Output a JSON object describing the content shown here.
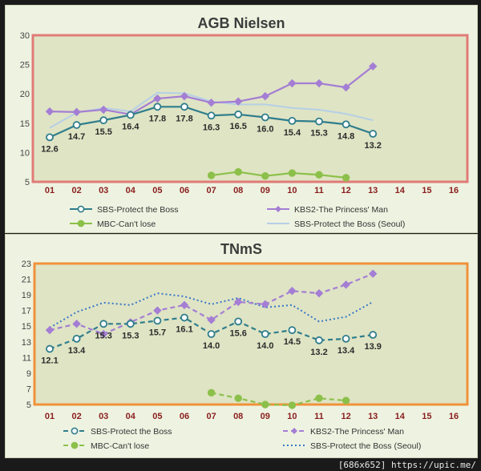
{
  "image_credit": "[686x652] https://upic.me/",
  "chart_data": [
    {
      "type": "line",
      "title": "AGB Nielsen",
      "categories": [
        "01",
        "02",
        "03",
        "04",
        "05",
        "06",
        "07",
        "08",
        "09",
        "10",
        "11",
        "12",
        "13",
        "14",
        "15",
        "16"
      ],
      "ylim": [
        5,
        30
      ],
      "yticks": [
        5,
        10,
        15,
        20,
        25,
        30
      ],
      "frame_color": "#e07b78",
      "series": [
        {
          "name": "SBS-Protect the Boss",
          "color": "#2f7d8c",
          "style": "solid",
          "marker": "circle",
          "labeled": true,
          "values": [
            12.6,
            14.7,
            15.5,
            16.4,
            17.8,
            17.8,
            16.3,
            16.5,
            16.0,
            15.4,
            15.3,
            14.8,
            13.2,
            null,
            null,
            null
          ]
        },
        {
          "name": "KBS2-The Princess' Man",
          "color": "#a47ed4",
          "style": "solid",
          "marker": "diamond",
          "labeled": false,
          "values": [
            17.0,
            16.9,
            17.3,
            16.5,
            19.2,
            19.6,
            18.5,
            18.7,
            19.6,
            21.8,
            21.8,
            21.1,
            24.7,
            null,
            null,
            null
          ]
        },
        {
          "name": "MBC-Can't lose",
          "color": "#8cc04a",
          "style": "solid",
          "marker": "circle",
          "labeled": false,
          "values": [
            null,
            null,
            null,
            null,
            null,
            null,
            6.1,
            6.7,
            6.0,
            6.5,
            6.2,
            5.7,
            null,
            null,
            null,
            null
          ]
        },
        {
          "name": "SBS-Protect the Boss (Seoul)",
          "color": "#b5cfe6",
          "style": "solid",
          "marker": "none",
          "labeled": false,
          "values": [
            14.2,
            16.8,
            17.6,
            17.0,
            20.2,
            20.1,
            18.7,
            18.2,
            18.2,
            17.6,
            17.3,
            16.6,
            15.5,
            null,
            null,
            null
          ]
        }
      ],
      "legend": [
        "SBS-Protect the Boss",
        "KBS2-The Princess' Man",
        "MBC-Can't lose",
        "SBS-Protect the Boss (Seoul)"
      ]
    },
    {
      "type": "line",
      "title": "TNmS",
      "categories": [
        "01",
        "02",
        "03",
        "04",
        "05",
        "06",
        "07",
        "08",
        "09",
        "10",
        "11",
        "12",
        "13",
        "14",
        "15",
        "16"
      ],
      "ylim": [
        5,
        23
      ],
      "yticks": [
        5,
        7,
        9,
        11,
        13,
        15,
        17,
        19,
        21,
        23
      ],
      "frame_color": "#f0923a",
      "series": [
        {
          "name": "SBS-Protect the Boss",
          "color": "#2f7d8c",
          "style": "dashed",
          "marker": "circle",
          "labeled": true,
          "values": [
            12.1,
            13.4,
            15.3,
            15.3,
            15.7,
            16.1,
            14.0,
            15.6,
            14.0,
            14.5,
            13.2,
            13.4,
            13.9,
            null,
            null,
            null
          ]
        },
        {
          "name": "KBS2-The Princess' Man",
          "color": "#a47ed4",
          "style": "dashed",
          "marker": "diamond",
          "labeled": false,
          "values": [
            14.5,
            15.3,
            14.0,
            15.5,
            17.0,
            17.7,
            15.8,
            18.1,
            17.8,
            19.5,
            19.2,
            20.3,
            21.7,
            null,
            null,
            null
          ]
        },
        {
          "name": "MBC-Can't lose",
          "color": "#8cc04a",
          "style": "dashed",
          "marker": "circle",
          "labeled": false,
          "values": [
            null,
            null,
            null,
            null,
            null,
            null,
            6.5,
            5.8,
            5.0,
            4.9,
            5.8,
            5.5,
            null,
            null,
            null,
            null
          ]
        },
        {
          "name": "SBS-Protect the Boss (Seoul)",
          "color": "#3a78c8",
          "style": "dotted",
          "marker": "none",
          "labeled": false,
          "values": [
            14.8,
            16.8,
            18.0,
            17.7,
            19.2,
            18.8,
            17.8,
            18.6,
            17.4,
            17.7,
            15.6,
            16.2,
            18.1,
            null,
            null,
            null
          ]
        }
      ],
      "legend": [
        "SBS-Protect the Boss",
        "KBS2-The Princess' Man",
        "MBC-Can't lose",
        "SBS-Protect the Boss (Seoul)"
      ]
    }
  ]
}
